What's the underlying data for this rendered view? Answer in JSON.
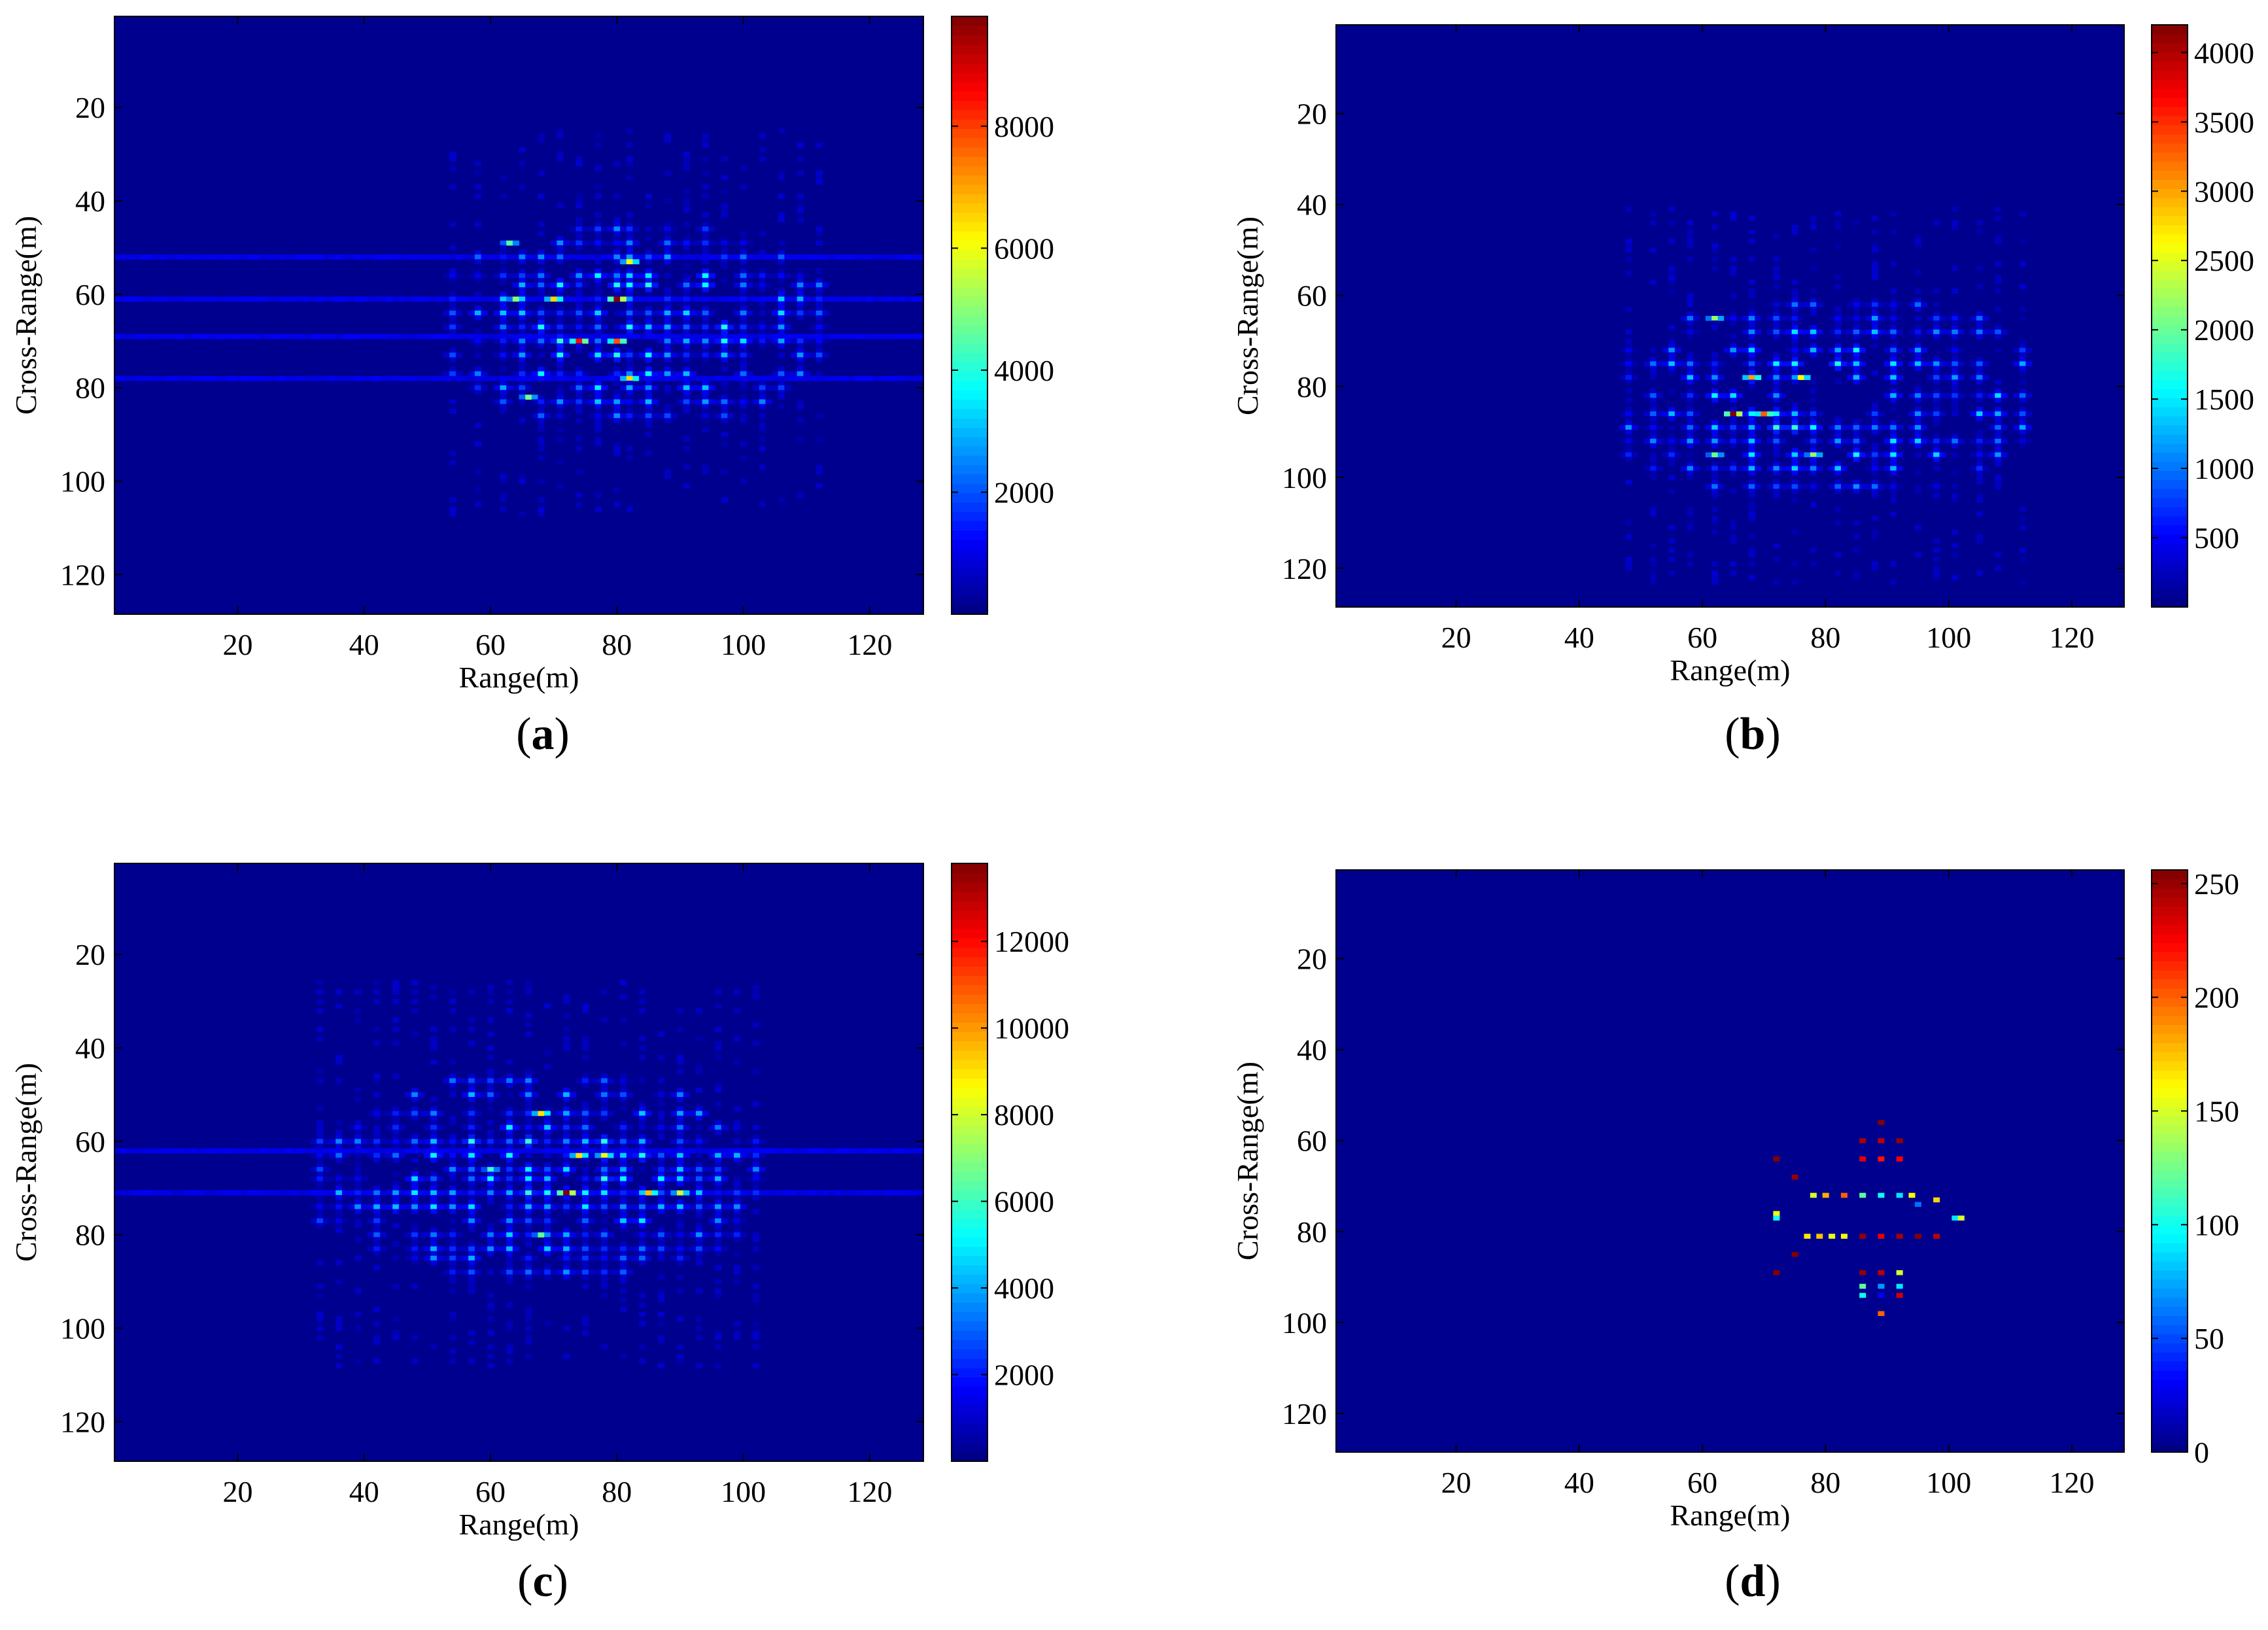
{
  "figure": {
    "background": "#ffffff",
    "plot_background_color": "#00008f",
    "colormap": "jet"
  },
  "chart_data": [
    {
      "panel": "(a)",
      "panel_letter": "a",
      "type": "heatmap",
      "title": "",
      "xlabel": "Range(m)",
      "ylabel": "Cross-Range(m)",
      "xlim": [
        0.5,
        128.5
      ],
      "ylim": [
        0.5,
        128.5
      ],
      "y_reversed": true,
      "x_ticks": [
        20,
        40,
        60,
        80,
        100,
        120
      ],
      "y_ticks": [
        20,
        40,
        60,
        80,
        100,
        120
      ],
      "colorbar": {
        "min": 0,
        "max": 9800,
        "ticks": [
          2000,
          4000,
          6000,
          8000
        ]
      },
      "row_min": 45,
      "row_max": 88,
      "col_min": 50,
      "col_max": 114,
      "rows": [
        46,
        49,
        52,
        56,
        58,
        61,
        64,
        67,
        70,
        73,
        77,
        80,
        83,
        86
      ],
      "cols": [
        54,
        58,
        62,
        65,
        68,
        71,
        74,
        77,
        80,
        82,
        85,
        88,
        91,
        94,
        97,
        100,
        103,
        106,
        109,
        112
      ],
      "peaks": [
        [
          61,
          70,
          6500
        ],
        [
          70,
          74,
          8500
        ],
        [
          61,
          80,
          9800
        ],
        [
          70,
          80,
          7800
        ],
        [
          53,
          82,
          6000
        ],
        [
          78,
          82,
          6500
        ],
        [
          61,
          64,
          5000
        ],
        [
          49,
          63,
          4500
        ],
        [
          82,
          66,
          4800
        ]
      ],
      "smear_rows": [
        52,
        61,
        69,
        78
      ],
      "seed": 11
    },
    {
      "panel": "(b)",
      "panel_letter": "b",
      "type": "heatmap",
      "title": "",
      "xlabel": "Range(m)",
      "ylabel": "Cross-Range(m)",
      "xlim": [
        0.5,
        128.5
      ],
      "ylim": [
        0.5,
        128.5
      ],
      "y_reversed": true,
      "x_ticks": [
        20,
        40,
        60,
        80,
        100,
        120
      ],
      "y_ticks": [
        20,
        40,
        60,
        80,
        100,
        120
      ],
      "colorbar": {
        "min": 0,
        "max": 4200,
        "ticks": [
          500,
          1000,
          1500,
          2000,
          2500,
          3000,
          3500,
          4000
        ]
      },
      "row_min": 61,
      "row_max": 104,
      "col_min": 42,
      "col_max": 120,
      "rows": [
        62,
        65,
        68,
        72,
        75,
        78,
        82,
        86,
        89,
        92,
        95,
        98,
        102
      ],
      "cols": [
        48,
        52,
        55,
        58,
        62,
        65,
        68,
        72,
        75,
        78,
        82,
        85,
        88,
        91,
        95,
        98,
        101,
        105,
        108,
        112
      ],
      "peaks": [
        [
          86,
          65,
          4200
        ],
        [
          78,
          68,
          3000
        ],
        [
          86,
          70,
          3300
        ],
        [
          78,
          76,
          2600
        ],
        [
          95,
          78,
          2200
        ],
        [
          65,
          62,
          2200
        ],
        [
          95,
          62,
          2000
        ]
      ],
      "smear_rows": [],
      "seed": 23
    },
    {
      "panel": "(c)",
      "panel_letter": "c",
      "type": "heatmap",
      "title": "",
      "xlabel": "Range(m)",
      "ylabel": "Cross-Range(m)",
      "xlim": [
        0.5,
        128.5
      ],
      "ylim": [
        0.5,
        128.5
      ],
      "y_reversed": true,
      "x_ticks": [
        20,
        40,
        60,
        80,
        100,
        120
      ],
      "y_ticks": [
        20,
        40,
        60,
        80,
        100,
        120
      ],
      "colorbar": {
        "min": 0,
        "max": 13800,
        "ticks": [
          2000,
          4000,
          6000,
          8000,
          10000,
          12000
        ]
      },
      "row_min": 46,
      "row_max": 89,
      "col_min": 30,
      "col_max": 106,
      "rows": [
        47,
        50,
        54,
        57,
        60,
        63,
        66,
        68,
        71,
        74,
        77,
        80,
        83,
        85,
        88
      ],
      "cols": [
        33,
        36,
        39,
        42,
        45,
        48,
        51,
        54,
        57,
        60,
        63,
        66,
        69,
        72,
        75,
        78,
        81,
        84,
        87,
        90,
        93,
        96,
        99,
        102
      ],
      "peaks": [
        [
          71,
          72,
          13800
        ],
        [
          63,
          74,
          9000
        ],
        [
          63,
          78,
          8500
        ],
        [
          71,
          85,
          9500
        ],
        [
          54,
          68,
          9000
        ],
        [
          80,
          68,
          6500
        ],
        [
          66,
          60,
          6000
        ],
        [
          71,
          90,
          8000
        ]
      ],
      "smear_rows": [
        62,
        71
      ],
      "seed": 37
    },
    {
      "panel": "(d)",
      "panel_letter": "d",
      "type": "heatmap",
      "title": "",
      "xlabel": "Range(m)",
      "ylabel": "Cross-Range(m)",
      "xlim": [
        0.5,
        128.5
      ],
      "ylim": [
        0.5,
        128.5
      ],
      "y_reversed": true,
      "x_ticks": [
        20,
        40,
        60,
        80,
        100,
        120
      ],
      "y_ticks": [
        20,
        40,
        60,
        80,
        100,
        120
      ],
      "colorbar": {
        "min": 0,
        "max": 256,
        "ticks": [
          0,
          50,
          100,
          150,
          200,
          250
        ]
      },
      "points": [
        [
          56,
          89,
          255
        ],
        [
          60,
          86,
          245
        ],
        [
          60,
          89,
          240
        ],
        [
          60,
          92,
          250
        ],
        [
          64,
          86,
          230
        ],
        [
          64,
          89,
          220
        ],
        [
          64,
          92,
          225
        ],
        [
          64,
          72,
          255
        ],
        [
          68,
          75,
          250
        ],
        [
          72,
          78,
          150
        ],
        [
          72,
          80,
          180
        ],
        [
          72,
          83,
          200
        ],
        [
          72,
          86,
          120
        ],
        [
          72,
          89,
          100
        ],
        [
          72,
          92,
          90
        ],
        [
          72,
          94,
          160
        ],
        [
          73,
          98,
          170
        ],
        [
          74,
          95,
          60
        ],
        [
          76,
          72,
          160
        ],
        [
          77,
          72,
          100
        ],
        [
          77,
          101,
          90
        ],
        [
          77,
          102,
          150
        ],
        [
          81,
          77,
          165
        ],
        [
          81,
          79,
          175
        ],
        [
          81,
          81,
          155
        ],
        [
          81,
          83,
          160
        ],
        [
          81,
          86,
          250
        ],
        [
          81,
          89,
          230
        ],
        [
          81,
          92,
          245
        ],
        [
          81,
          95,
          255
        ],
        [
          81,
          98,
          240
        ],
        [
          85,
          75,
          255
        ],
        [
          89,
          72,
          255
        ],
        [
          89,
          86,
          250
        ],
        [
          89,
          89,
          240
        ],
        [
          89,
          92,
          150
        ],
        [
          92,
          86,
          120
        ],
        [
          92,
          89,
          70
        ],
        [
          92,
          92,
          90
        ],
        [
          94,
          86,
          100
        ],
        [
          94,
          89,
          30
        ],
        [
          94,
          92,
          235
        ],
        [
          98,
          89,
          200
        ]
      ],
      "seed": 51
    }
  ]
}
